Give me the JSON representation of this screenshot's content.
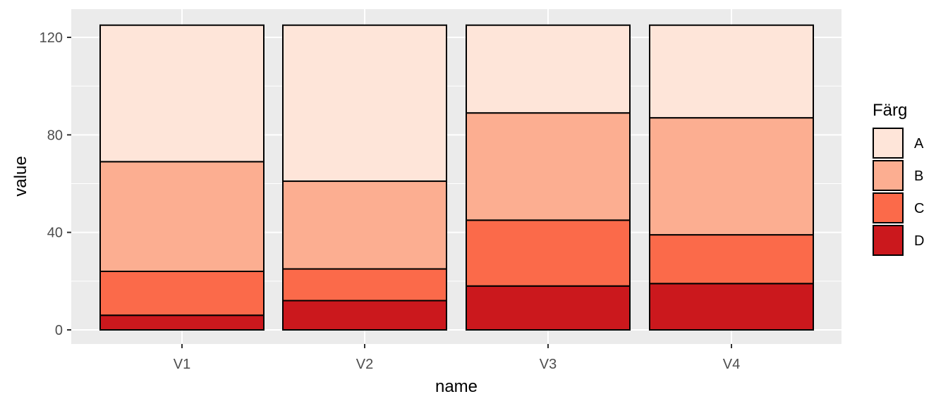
{
  "chart_data": {
    "type": "bar",
    "stacked": true,
    "categories": [
      "V1",
      "V2",
      "V3",
      "V4"
    ],
    "series": [
      {
        "name": "A",
        "values": [
          56,
          64,
          36,
          38
        ],
        "color": "#FEE5D9"
      },
      {
        "name": "B",
        "values": [
          45,
          36,
          44,
          48
        ],
        "color": "#FCAE91"
      },
      {
        "name": "C",
        "values": [
          18,
          13,
          27,
          20
        ],
        "color": "#FB6A4A"
      },
      {
        "name": "D",
        "values": [
          6,
          12,
          18,
          19
        ],
        "color": "#CB181D"
      }
    ],
    "xlabel": "name",
    "ylabel": "value",
    "yticks": [
      "0",
      "40",
      "80",
      "120"
    ],
    "ylim": [
      -3.5,
      130
    ],
    "grid": true,
    "legend": {
      "title": "Färg",
      "position": "right"
    },
    "panel_background": "#EBEBEB",
    "grid_color": "#FFFFFF",
    "bar_outline": "#000000"
  }
}
